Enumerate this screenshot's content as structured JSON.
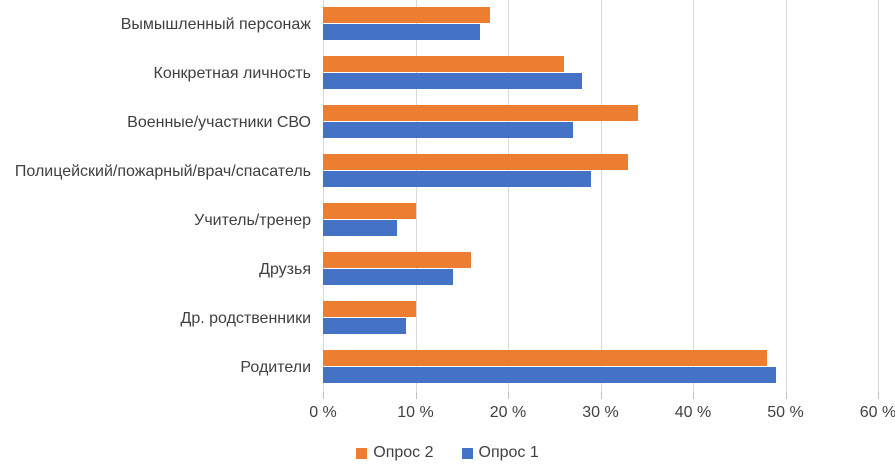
{
  "chart_data": {
    "type": "bar",
    "orientation": "horizontal",
    "title": "",
    "categories": [
      "Вымышленный персонаж",
      "Конкретная личность",
      "Военные/участники СВО",
      "Полицейский/пожарный/врач/спасатель",
      "Учитель/тренер",
      "Друзья",
      "Др. родственники",
      "Родители"
    ],
    "series": [
      {
        "key": "opros-2",
        "name": "Опрос 2",
        "color": "#ED7D31",
        "values": [
          18,
          26,
          34,
          33,
          10,
          16,
          10,
          48
        ]
      },
      {
        "key": "opros-1",
        "name": "Опрос 1",
        "color": "#4472C4",
        "values": [
          17,
          28,
          27,
          29,
          8,
          14,
          9,
          49
        ]
      }
    ],
    "xlim": [
      0,
      60
    ],
    "x_tick_labels": [
      "0 %",
      "10 %",
      "20 %",
      "30 %",
      "40 %",
      "50 %",
      "60 %"
    ],
    "grid": true,
    "legend_position": "bottom",
    "gridline_color": "#D9D9D9",
    "tick_color": "#BFBFBF",
    "axis_text_color": "#404040"
  }
}
